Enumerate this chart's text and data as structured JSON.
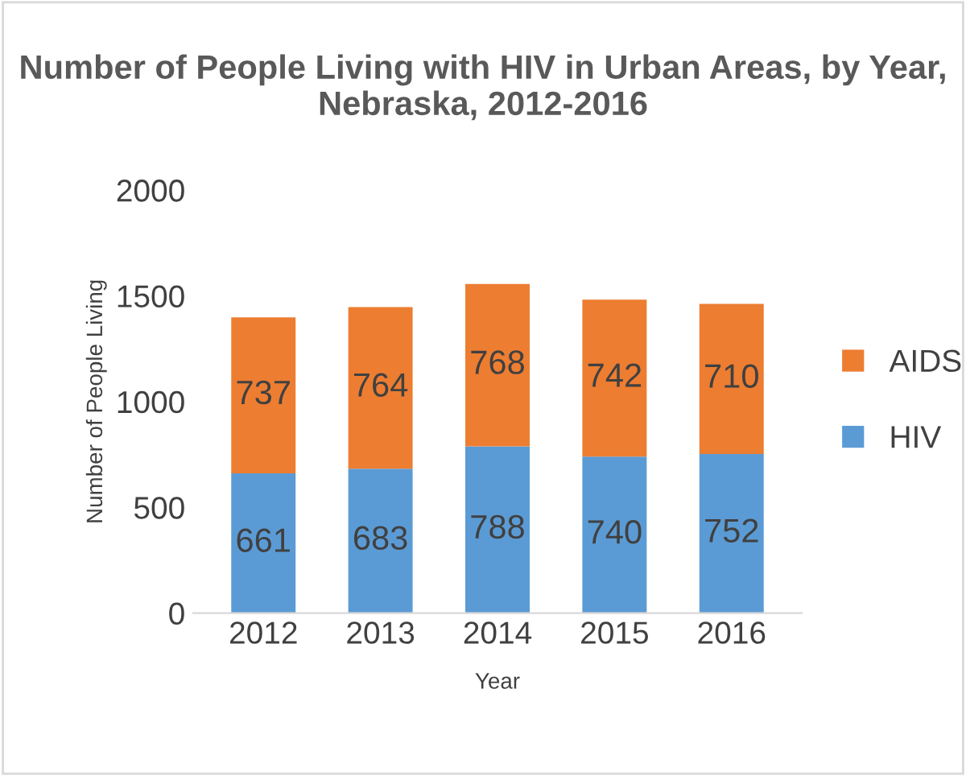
{
  "chart_data": {
    "type": "bar",
    "title": "Number of People Living with HIV in Urban Areas, by Year, Nebraska, 2012-2016",
    "xlabel": "Year",
    "ylabel": "Number of People Living",
    "categories": [
      "2012",
      "2013",
      "2014",
      "2015",
      "2016"
    ],
    "series": [
      {
        "name": "HIV",
        "color": "#5b9bd5",
        "values": [
          661,
          683,
          788,
          740,
          752
        ]
      },
      {
        "name": "AIDS",
        "color": "#ed7d31",
        "values": [
          737,
          764,
          768,
          742,
          710
        ]
      }
    ],
    "stacked": true,
    "data_labels": true,
    "ylim": [
      0,
      2000
    ],
    "yticks": [
      0,
      500,
      1000,
      1500,
      2000
    ],
    "grid": false,
    "legend": "right"
  }
}
